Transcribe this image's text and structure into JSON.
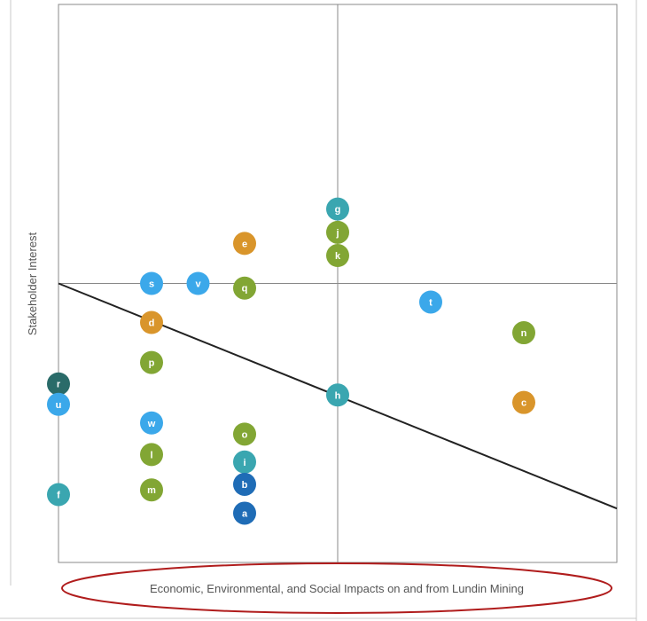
{
  "chart_data": {
    "type": "scatter",
    "xlabel": "Economic, Environmental, and Social Impacts on and from Lundin Mining",
    "ylabel": "Stakeholder Interest",
    "xlim": [
      0,
      6
    ],
    "ylim": [
      0,
      6
    ],
    "grid": false,
    "quadrant_lines": {
      "x": 3,
      "y": 3
    },
    "threshold_line": {
      "x": [
        0,
        6
      ],
      "y": [
        3,
        0.58
      ]
    },
    "colors": {
      "teal": "#3aa6b0",
      "green": "#82a634",
      "orange": "#d9952b",
      "lightblue": "#3ba8ea",
      "darkblue": "#1f6cb6",
      "darkteal": "#2a6b69",
      "line": "#222222",
      "frame": "#888888",
      "ellipse": "#b01c1c"
    },
    "points": [
      {
        "label": "g",
        "x": 3.0,
        "y": 3.8,
        "color": "teal"
      },
      {
        "label": "j",
        "x": 3.0,
        "y": 3.55,
        "color": "green"
      },
      {
        "label": "k",
        "x": 3.0,
        "y": 3.3,
        "color": "green"
      },
      {
        "label": "e",
        "x": 2.0,
        "y": 3.43,
        "color": "orange"
      },
      {
        "label": "s",
        "x": 1.0,
        "y": 3.0,
        "color": "lightblue"
      },
      {
        "label": "v",
        "x": 1.5,
        "y": 3.0,
        "color": "lightblue"
      },
      {
        "label": "q",
        "x": 2.0,
        "y": 2.95,
        "color": "green"
      },
      {
        "label": "t",
        "x": 4.0,
        "y": 2.8,
        "color": "lightblue"
      },
      {
        "label": "d",
        "x": 1.0,
        "y": 2.58,
        "color": "orange"
      },
      {
        "label": "n",
        "x": 5.0,
        "y": 2.47,
        "color": "green"
      },
      {
        "label": "p",
        "x": 1.0,
        "y": 2.15,
        "color": "green"
      },
      {
        "label": "r",
        "x": 0.0,
        "y": 1.92,
        "color": "darkteal"
      },
      {
        "label": "h",
        "x": 3.0,
        "y": 1.8,
        "color": "teal"
      },
      {
        "label": "u",
        "x": 0.0,
        "y": 1.7,
        "color": "lightblue"
      },
      {
        "label": "c",
        "x": 5.0,
        "y": 1.72,
        "color": "orange"
      },
      {
        "label": "w",
        "x": 1.0,
        "y": 1.5,
        "color": "lightblue"
      },
      {
        "label": "o",
        "x": 2.0,
        "y": 1.38,
        "color": "green"
      },
      {
        "label": "l",
        "x": 1.0,
        "y": 1.16,
        "color": "green"
      },
      {
        "label": "i",
        "x": 2.0,
        "y": 1.08,
        "color": "teal"
      },
      {
        "label": "b",
        "x": 2.0,
        "y": 0.84,
        "color": "darkblue"
      },
      {
        "label": "m",
        "x": 1.0,
        "y": 0.78,
        "color": "green"
      },
      {
        "label": "f",
        "x": 0.0,
        "y": 0.73,
        "color": "teal"
      },
      {
        "label": "a",
        "x": 2.0,
        "y": 0.53,
        "color": "darkblue"
      }
    ]
  }
}
